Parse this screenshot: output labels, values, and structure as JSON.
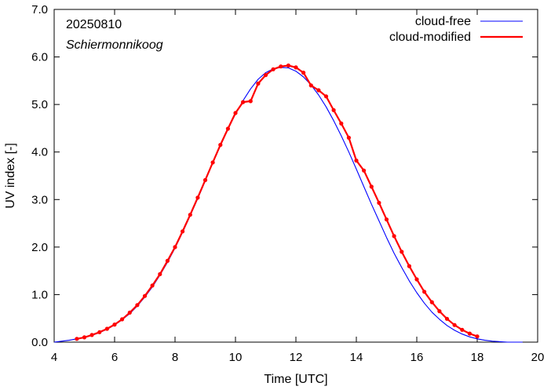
{
  "chart_data": {
    "type": "line",
    "title": "",
    "xlabel": "Time  [UTC]",
    "ylabel": "UV index  [-]",
    "xlim": [
      4,
      20
    ],
    "ylim": [
      0,
      7
    ],
    "x_ticks": [
      4,
      6,
      8,
      10,
      12,
      14,
      16,
      18,
      20
    ],
    "x_tick_labels": [
      "4",
      "6",
      "8",
      "10",
      "12",
      "14",
      "16",
      "18",
      "20"
    ],
    "y_ticks": [
      0,
      1,
      2,
      3,
      4,
      5,
      6,
      7
    ],
    "y_tick_labels": [
      "0.0",
      "1.0",
      "2.0",
      "3.0",
      "4.0",
      "5.0",
      "6.0",
      "7.0"
    ],
    "annotations": [
      "20250810",
      "Schiermonnikoog"
    ],
    "legend_position": "top-right",
    "grid": false,
    "series": [
      {
        "name": "cloud-free",
        "color": "#0000ff",
        "style": "thin-line",
        "x": [
          4.0,
          4.25,
          4.5,
          4.75,
          5.0,
          5.25,
          5.5,
          5.75,
          6.0,
          6.25,
          6.5,
          6.75,
          7.0,
          7.25,
          7.5,
          7.75,
          8.0,
          8.25,
          8.5,
          8.75,
          9.0,
          9.25,
          9.5,
          9.75,
          10.0,
          10.25,
          10.5,
          10.75,
          11.0,
          11.25,
          11.5,
          11.75,
          12.0,
          12.25,
          12.5,
          12.75,
          13.0,
          13.25,
          13.5,
          13.75,
          14.0,
          14.25,
          14.5,
          14.75,
          15.0,
          15.25,
          15.5,
          15.75,
          16.0,
          16.25,
          16.5,
          16.75,
          17.0,
          17.25,
          17.5,
          17.75,
          18.0,
          18.25,
          18.5,
          18.75,
          19.0,
          19.25,
          19.5
        ],
        "y": [
          0.0,
          0.02,
          0.04,
          0.07,
          0.1,
          0.14,
          0.2,
          0.27,
          0.36,
          0.47,
          0.6,
          0.76,
          0.95,
          1.16,
          1.41,
          1.68,
          1.98,
          2.31,
          2.66,
          3.02,
          3.39,
          3.77,
          4.13,
          4.48,
          4.8,
          5.08,
          5.33,
          5.53,
          5.67,
          5.75,
          5.78,
          5.77,
          5.7,
          5.58,
          5.41,
          5.2,
          4.95,
          4.66,
          4.34,
          4.0,
          3.64,
          3.27,
          2.9,
          2.55,
          2.2,
          1.87,
          1.57,
          1.29,
          1.04,
          0.82,
          0.63,
          0.48,
          0.35,
          0.25,
          0.17,
          0.11,
          0.07,
          0.04,
          0.02,
          0.01,
          0.0,
          0.0,
          0.0
        ]
      },
      {
        "name": "cloud-modified",
        "color": "#ff0000",
        "style": "thick-line-with-dots",
        "x": [
          4.75,
          5.0,
          5.25,
          5.5,
          5.75,
          6.0,
          6.25,
          6.5,
          6.75,
          7.0,
          7.25,
          7.5,
          7.75,
          8.0,
          8.25,
          8.5,
          8.75,
          9.0,
          9.25,
          9.5,
          9.75,
          10.0,
          10.25,
          10.5,
          10.75,
          11.0,
          11.25,
          11.5,
          11.75,
          12.0,
          12.25,
          12.5,
          12.75,
          13.0,
          13.25,
          13.5,
          13.75,
          14.0,
          14.25,
          14.5,
          14.75,
          15.0,
          15.25,
          15.5,
          15.75,
          16.0,
          16.25,
          16.5,
          16.75,
          17.0,
          17.25,
          17.5,
          17.75,
          18.0
        ],
        "y": [
          0.07,
          0.1,
          0.15,
          0.21,
          0.28,
          0.37,
          0.48,
          0.62,
          0.78,
          0.97,
          1.19,
          1.43,
          1.71,
          2.0,
          2.33,
          2.68,
          3.04,
          3.41,
          3.78,
          4.15,
          4.49,
          4.82,
          5.05,
          5.07,
          5.44,
          5.62,
          5.74,
          5.8,
          5.82,
          5.78,
          5.67,
          5.4,
          5.3,
          5.17,
          4.88,
          4.6,
          4.3,
          3.82,
          3.61,
          3.27,
          2.93,
          2.58,
          2.23,
          1.9,
          1.6,
          1.32,
          1.06,
          0.84,
          0.65,
          0.49,
          0.36,
          0.26,
          0.18,
          0.12
        ]
      }
    ]
  }
}
